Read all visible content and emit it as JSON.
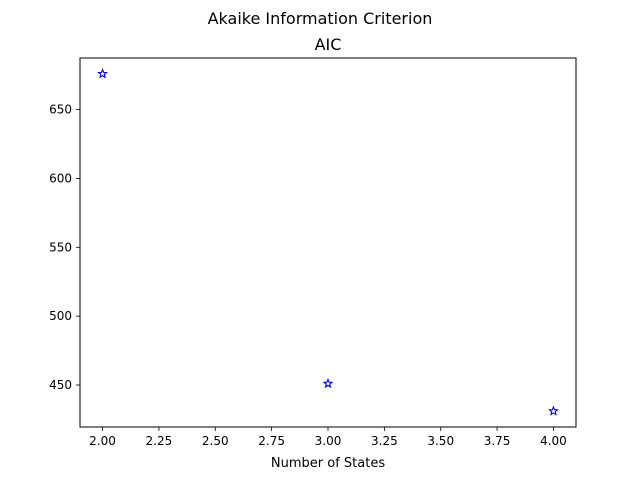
{
  "figure": {
    "suptitle": "Akaike Information Criterion"
  },
  "chart_data": {
    "type": "scatter",
    "title": "AIC",
    "xlabel": "Number of States",
    "ylabel": "",
    "xlim": [
      1.9,
      4.1
    ],
    "ylim": [
      419.5,
      687.5
    ],
    "x_ticks": [
      2.0,
      2.25,
      2.5,
      2.75,
      3.0,
      3.25,
      3.5,
      3.75,
      4.0
    ],
    "x_tick_labels": [
      "2.00",
      "2.25",
      "2.50",
      "2.75",
      "3.00",
      "3.25",
      "3.50",
      "3.75",
      "4.00"
    ],
    "y_ticks": [
      450,
      500,
      550,
      600,
      650
    ],
    "y_tick_labels": [
      "450",
      "500",
      "550",
      "600",
      "650"
    ],
    "grid": false,
    "marker": "star",
    "marker_color": "#0000ff",
    "series": [
      {
        "x": [
          2,
          3,
          4
        ],
        "y": [
          676,
          451,
          431
        ]
      }
    ]
  }
}
